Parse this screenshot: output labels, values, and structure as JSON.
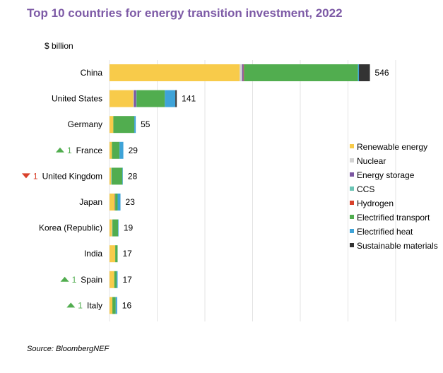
{
  "title": "Top 10 countries for energy transition investment, 2022",
  "unit_label": "$ billion",
  "source": "Source: BloombergNEF",
  "colors": {
    "Renewable energy": "#f8cb4a",
    "Nuclear": "#d3d3d3",
    "Energy storage": "#7b56a1",
    "CCS": "#6cc4b5",
    "Hydrogen": "#d9412b",
    "Electrified transport": "#51ad4f",
    "Electrified heat": "#3ea3d8",
    "Sustainable materials": "#333333",
    "rank_up": "#51ad4f",
    "rank_down": "#d9412b"
  },
  "chart_data": {
    "type": "bar",
    "orientation": "horizontal",
    "stacked": true,
    "title": "Top 10 countries for energy transition investment, 2022",
    "unit": "$ billion",
    "grid": true,
    "xlim": [
      0,
      600
    ],
    "legend_position": "right",
    "categories": [
      "China",
      "United States",
      "Germany",
      "France",
      "United Kingdom",
      "Japan",
      "Korea (Republic)",
      "India",
      "Spain",
      "Italy"
    ],
    "totals": [
      "546",
      "141",
      "55",
      "29",
      "28",
      "23",
      "19",
      "17",
      "17",
      "16"
    ],
    "rank_changes": [
      {
        "category": "France",
        "direction": "up",
        "value": "1"
      },
      {
        "category": "United Kingdom",
        "direction": "down",
        "value": "1"
      },
      {
        "category": "Spain",
        "direction": "up",
        "value": "1"
      },
      {
        "category": "Italy",
        "direction": "up",
        "value": "1"
      }
    ],
    "series": [
      {
        "name": "Renewable energy",
        "values": [
          273,
          50,
          8,
          5,
          3,
          11,
          5,
          12,
          10,
          6
        ]
      },
      {
        "name": "Nuclear",
        "values": [
          5,
          1,
          0,
          0,
          1,
          0,
          1,
          0,
          0,
          0
        ]
      },
      {
        "name": "Energy storage",
        "values": [
          3,
          5,
          0,
          0,
          0,
          1,
          0,
          0,
          0,
          0
        ]
      },
      {
        "name": "CCS",
        "values": [
          0,
          1,
          0,
          0,
          0,
          0,
          0,
          0,
          0,
          0
        ]
      },
      {
        "name": "Hydrogen",
        "values": [
          1,
          0,
          0,
          0,
          0,
          0,
          0,
          0,
          0,
          0
        ]
      },
      {
        "name": "Electrified transport",
        "values": [
          239,
          59,
          44,
          16,
          23,
          5,
          12,
          5,
          5,
          7
        ]
      },
      {
        "name": "Electrified heat",
        "values": [
          2,
          22,
          3,
          8,
          1,
          6,
          1,
          0,
          2,
          3
        ]
      },
      {
        "name": "Sustainable materials",
        "values": [
          23,
          3,
          0,
          0,
          0,
          0,
          0,
          0,
          0,
          0
        ]
      }
    ]
  }
}
